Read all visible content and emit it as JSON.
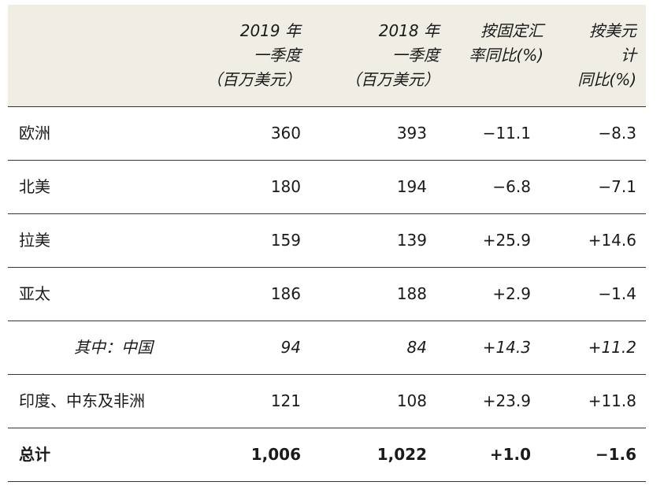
{
  "header": {
    "col1": [
      "2019 年",
      "一季度",
      "（百万美元）"
    ],
    "col2": [
      "2018 年",
      "一季度",
      "（百万美元）"
    ],
    "col3": [
      "按固定汇",
      "率同比(%)"
    ],
    "col4": [
      "按美元",
      "计",
      "同比(%)"
    ]
  },
  "rows": [
    {
      "region": "欧洲",
      "v2019": "360",
      "v2018": "393",
      "fx": "−11.1",
      "usd": "−8.3"
    },
    {
      "region": "北美",
      "v2019": "180",
      "v2018": "194",
      "fx": "−6.8",
      "usd": "−7.1"
    },
    {
      "region": "拉美",
      "v2019": "159",
      "v2018": "139",
      "fx": "+25.9",
      "usd": "+14.6"
    },
    {
      "region": "亚太",
      "v2019": "186",
      "v2018": "188",
      "fx": "+2.9",
      "usd": "−1.4"
    },
    {
      "region": "其中：中国",
      "v2019": "94",
      "v2018": "84",
      "fx": "+14.3",
      "usd": "+11.2"
    },
    {
      "region": "印度、中东及非洲",
      "v2019": "121",
      "v2018": "108",
      "fx": "+23.9",
      "usd": "+11.8"
    },
    {
      "region": "总计",
      "v2019": "1,006",
      "v2018": "1,022",
      "fx": "+1.0",
      "usd": "−1.6"
    }
  ]
}
